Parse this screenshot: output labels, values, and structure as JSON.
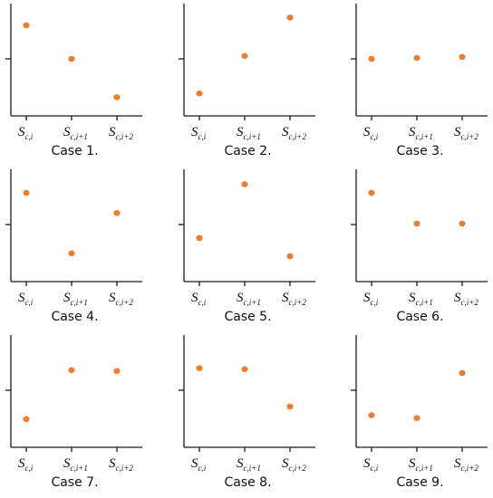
{
  "chart_data": [
    {
      "type": "scatter",
      "title": "Case 1.",
      "categories": [
        "S_c,i",
        "S_c,i+1",
        "S_c,i+2"
      ],
      "values": [
        0.85,
        0.5,
        0.1
      ],
      "ylim": [
        0,
        1
      ]
    },
    {
      "type": "scatter",
      "title": "Case 2.",
      "categories": [
        "S_c,i",
        "S_c,i+1",
        "S_c,i+2"
      ],
      "values": [
        0.14,
        0.53,
        0.93
      ],
      "ylim": [
        0,
        1
      ]
    },
    {
      "type": "scatter",
      "title": "Case 3.",
      "categories": [
        "S_c,i",
        "S_c,i+1",
        "S_c,i+2"
      ],
      "values": [
        0.5,
        0.51,
        0.52
      ],
      "ylim": [
        0,
        1
      ]
    },
    {
      "type": "scatter",
      "title": "Case 4.",
      "categories": [
        "S_c,i",
        "S_c,i+1",
        "S_c,i+2"
      ],
      "values": [
        0.83,
        0.2,
        0.62
      ],
      "ylim": [
        0,
        1
      ]
    },
    {
      "type": "scatter",
      "title": "Case 5.",
      "categories": [
        "S_c,i",
        "S_c,i+1",
        "S_c,i+2"
      ],
      "values": [
        0.36,
        0.92,
        0.17
      ],
      "ylim": [
        0,
        1
      ]
    },
    {
      "type": "scatter",
      "title": "Case 6.",
      "categories": [
        "S_c,i",
        "S_c,i+1",
        "S_c,i+2"
      ],
      "values": [
        0.83,
        0.51,
        0.51
      ],
      "ylim": [
        0,
        1
      ]
    },
    {
      "type": "scatter",
      "title": "Case 7.",
      "categories": [
        "S_c,i",
        "S_c,i+1",
        "S_c,i+2"
      ],
      "values": [
        0.2,
        0.71,
        0.7
      ],
      "ylim": [
        0,
        1
      ]
    },
    {
      "type": "scatter",
      "title": "Case 8.",
      "categories": [
        "S_c,i",
        "S_c,i+1",
        "S_c,i+2"
      ],
      "values": [
        0.73,
        0.72,
        0.33
      ],
      "ylim": [
        0,
        1
      ]
    },
    {
      "type": "scatter",
      "title": "Case 9.",
      "categories": [
        "S_c,i",
        "S_c,i+1",
        "S_c,i+2"
      ],
      "values": [
        0.24,
        0.21,
        0.68
      ],
      "ylim": [
        0,
        1
      ]
    }
  ],
  "style": {
    "marker_color": "#ED7D31",
    "axis_color": "#1a1a1a"
  },
  "tick_parts": [
    {
      "main": "S",
      "sub": "c,i"
    },
    {
      "main": "S",
      "sub": "c,i+1"
    },
    {
      "main": "S",
      "sub": "c,i+2"
    }
  ]
}
